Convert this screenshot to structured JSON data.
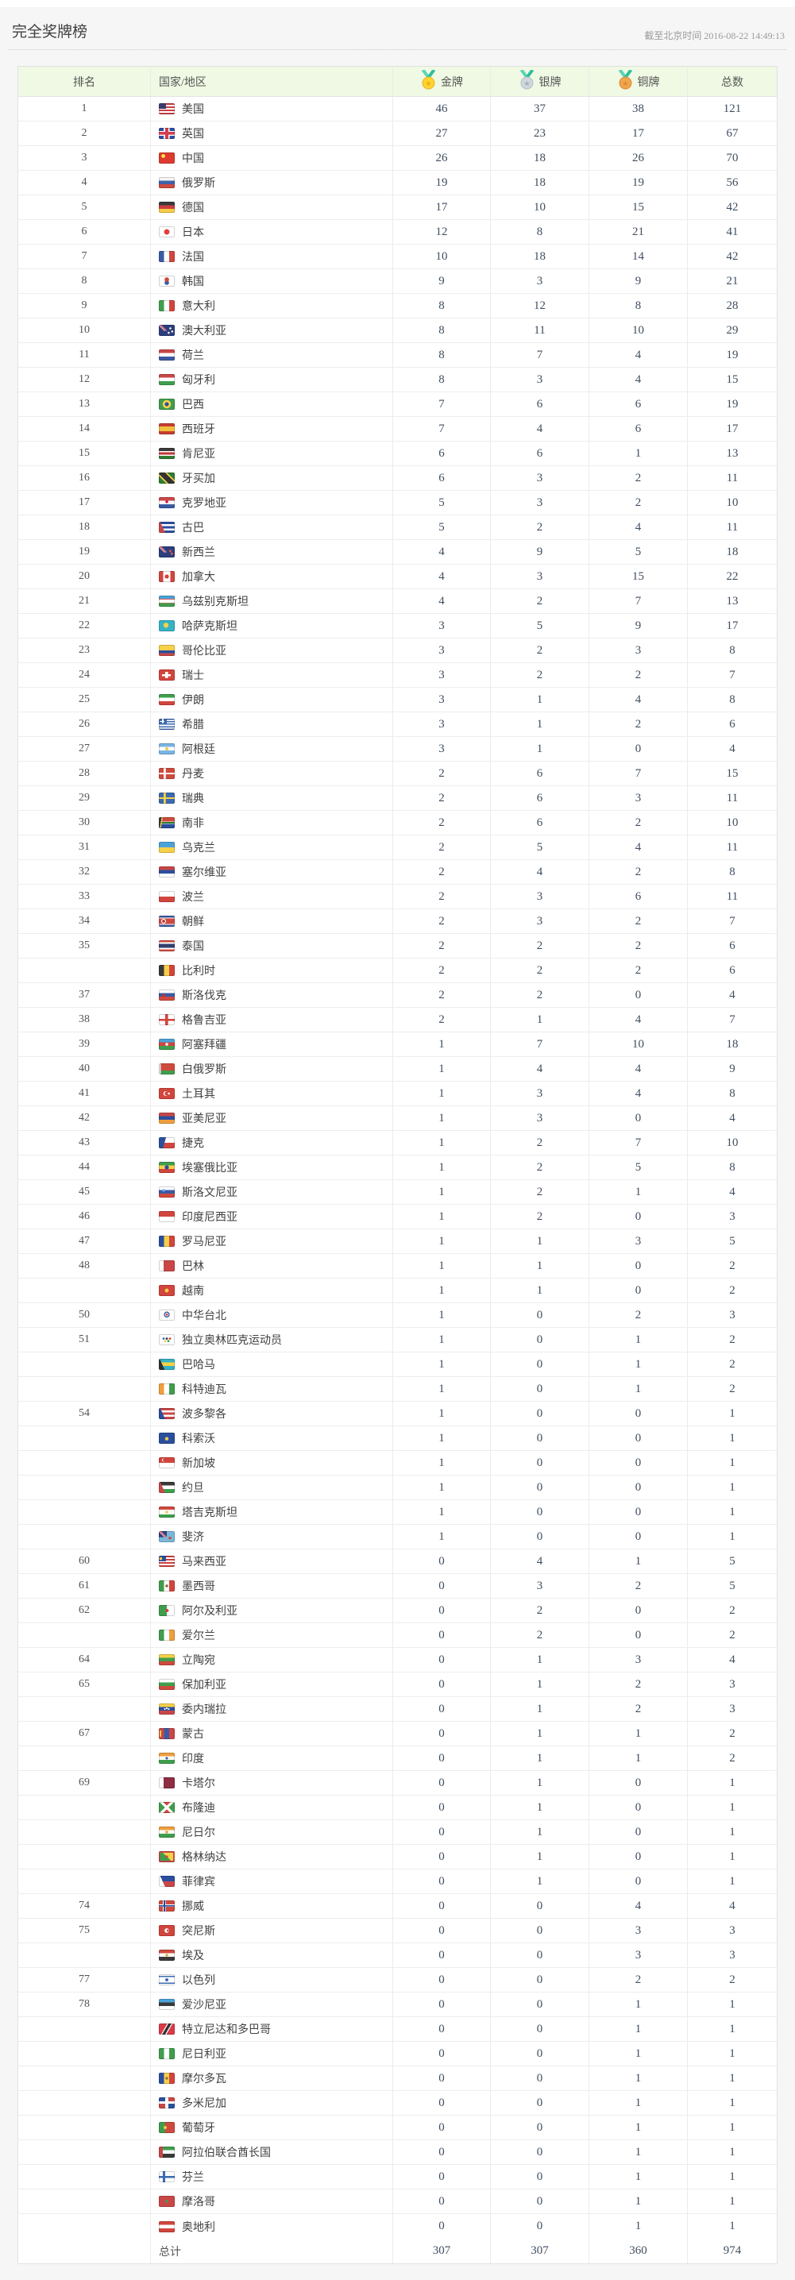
{
  "page": {
    "title": "完全奖牌榜",
    "timestamp": "截至北京时间 2016-08-22 14:49:13"
  },
  "table": {
    "headers": {
      "rank": "排名",
      "country": "国家/地区",
      "gold": "金牌",
      "silver": "银牌",
      "bronze": "铜牌",
      "total": "总数"
    },
    "medal_icons": [
      "gold-medal-icon",
      "silver-medal-icon",
      "bronze-medal-icon"
    ],
    "accent_colors": {
      "header_bg": "#eff9e3",
      "gold": "#ffd52e",
      "silver": "#d0d8dd",
      "bronze": "#f2a54c",
      "ribbon": "#3fc9a7"
    },
    "rows": [
      {
        "rank": "1",
        "country": "美国",
        "flag": "us",
        "gold": 46,
        "silver": 37,
        "bronze": 38,
        "total": 121
      },
      {
        "rank": "2",
        "country": "英国",
        "flag": "gb",
        "gold": 27,
        "silver": 23,
        "bronze": 17,
        "total": 67
      },
      {
        "rank": "3",
        "country": "中国",
        "flag": "cn",
        "gold": 26,
        "silver": 18,
        "bronze": 26,
        "total": 70
      },
      {
        "rank": "4",
        "country": "俄罗斯",
        "flag": "ru",
        "gold": 19,
        "silver": 18,
        "bronze": 19,
        "total": 56
      },
      {
        "rank": "5",
        "country": "德国",
        "flag": "de",
        "gold": 17,
        "silver": 10,
        "bronze": 15,
        "total": 42
      },
      {
        "rank": "6",
        "country": "日本",
        "flag": "jp",
        "gold": 12,
        "silver": 8,
        "bronze": 21,
        "total": 41
      },
      {
        "rank": "7",
        "country": "法国",
        "flag": "fr",
        "gold": 10,
        "silver": 18,
        "bronze": 14,
        "total": 42
      },
      {
        "rank": "8",
        "country": "韩国",
        "flag": "kr",
        "gold": 9,
        "silver": 3,
        "bronze": 9,
        "total": 21
      },
      {
        "rank": "9",
        "country": "意大利",
        "flag": "it",
        "gold": 8,
        "silver": 12,
        "bronze": 8,
        "total": 28
      },
      {
        "rank": "10",
        "country": "澳大利亚",
        "flag": "au",
        "gold": 8,
        "silver": 11,
        "bronze": 10,
        "total": 29
      },
      {
        "rank": "11",
        "country": "荷兰",
        "flag": "nl",
        "gold": 8,
        "silver": 7,
        "bronze": 4,
        "total": 19
      },
      {
        "rank": "12",
        "country": "匈牙利",
        "flag": "hu",
        "gold": 8,
        "silver": 3,
        "bronze": 4,
        "total": 15
      },
      {
        "rank": "13",
        "country": "巴西",
        "flag": "br",
        "gold": 7,
        "silver": 6,
        "bronze": 6,
        "total": 19
      },
      {
        "rank": "14",
        "country": "西班牙",
        "flag": "es",
        "gold": 7,
        "silver": 4,
        "bronze": 6,
        "total": 17
      },
      {
        "rank": "15",
        "country": "肯尼亚",
        "flag": "ke",
        "gold": 6,
        "silver": 6,
        "bronze": 1,
        "total": 13
      },
      {
        "rank": "16",
        "country": "牙买加",
        "flag": "jm",
        "gold": 6,
        "silver": 3,
        "bronze": 2,
        "total": 11
      },
      {
        "rank": "17",
        "country": "克罗地亚",
        "flag": "hr",
        "gold": 5,
        "silver": 3,
        "bronze": 2,
        "total": 10
      },
      {
        "rank": "18",
        "country": "古巴",
        "flag": "cu",
        "gold": 5,
        "silver": 2,
        "bronze": 4,
        "total": 11
      },
      {
        "rank": "19",
        "country": "新西兰",
        "flag": "nz",
        "gold": 4,
        "silver": 9,
        "bronze": 5,
        "total": 18
      },
      {
        "rank": "20",
        "country": "加拿大",
        "flag": "ca",
        "gold": 4,
        "silver": 3,
        "bronze": 15,
        "total": 22
      },
      {
        "rank": "21",
        "country": "乌兹别克斯坦",
        "flag": "uz",
        "gold": 4,
        "silver": 2,
        "bronze": 7,
        "total": 13
      },
      {
        "rank": "22",
        "country": "哈萨克斯坦",
        "flag": "kz",
        "gold": 3,
        "silver": 5,
        "bronze": 9,
        "total": 17
      },
      {
        "rank": "23",
        "country": "哥伦比亚",
        "flag": "co",
        "gold": 3,
        "silver": 2,
        "bronze": 3,
        "total": 8
      },
      {
        "rank": "24",
        "country": "瑞士",
        "flag": "ch",
        "gold": 3,
        "silver": 2,
        "bronze": 2,
        "total": 7
      },
      {
        "rank": "25",
        "country": "伊朗",
        "flag": "ir",
        "gold": 3,
        "silver": 1,
        "bronze": 4,
        "total": 8
      },
      {
        "rank": "26",
        "country": "希腊",
        "flag": "gr",
        "gold": 3,
        "silver": 1,
        "bronze": 2,
        "total": 6
      },
      {
        "rank": "27",
        "country": "阿根廷",
        "flag": "ar",
        "gold": 3,
        "silver": 1,
        "bronze": 0,
        "total": 4
      },
      {
        "rank": "28",
        "country": "丹麦",
        "flag": "dk",
        "gold": 2,
        "silver": 6,
        "bronze": 7,
        "total": 15
      },
      {
        "rank": "29",
        "country": "瑞典",
        "flag": "se",
        "gold": 2,
        "silver": 6,
        "bronze": 3,
        "total": 11
      },
      {
        "rank": "30",
        "country": "南非",
        "flag": "za",
        "gold": 2,
        "silver": 6,
        "bronze": 2,
        "total": 10
      },
      {
        "rank": "31",
        "country": "乌克兰",
        "flag": "ua",
        "gold": 2,
        "silver": 5,
        "bronze": 4,
        "total": 11
      },
      {
        "rank": "32",
        "country": "塞尔维亚",
        "flag": "rs",
        "gold": 2,
        "silver": 4,
        "bronze": 2,
        "total": 8
      },
      {
        "rank": "33",
        "country": "波兰",
        "flag": "pl",
        "gold": 2,
        "silver": 3,
        "bronze": 6,
        "total": 11
      },
      {
        "rank": "34",
        "country": "朝鲜",
        "flag": "kp",
        "gold": 2,
        "silver": 3,
        "bronze": 2,
        "total": 7
      },
      {
        "rank": "35",
        "country": "泰国",
        "flag": "th",
        "gold": 2,
        "silver": 2,
        "bronze": 2,
        "total": 6
      },
      {
        "rank": "",
        "country": "比利时",
        "flag": "be",
        "gold": 2,
        "silver": 2,
        "bronze": 2,
        "total": 6
      },
      {
        "rank": "37",
        "country": "斯洛伐克",
        "flag": "sk",
        "gold": 2,
        "silver": 2,
        "bronze": 0,
        "total": 4
      },
      {
        "rank": "38",
        "country": "格鲁吉亚",
        "flag": "ge",
        "gold": 2,
        "silver": 1,
        "bronze": 4,
        "total": 7
      },
      {
        "rank": "39",
        "country": "阿塞拜疆",
        "flag": "az",
        "gold": 1,
        "silver": 7,
        "bronze": 10,
        "total": 18
      },
      {
        "rank": "40",
        "country": "白俄罗斯",
        "flag": "by",
        "gold": 1,
        "silver": 4,
        "bronze": 4,
        "total": 9
      },
      {
        "rank": "41",
        "country": "土耳其",
        "flag": "tr",
        "gold": 1,
        "silver": 3,
        "bronze": 4,
        "total": 8
      },
      {
        "rank": "42",
        "country": "亚美尼亚",
        "flag": "am",
        "gold": 1,
        "silver": 3,
        "bronze": 0,
        "total": 4
      },
      {
        "rank": "43",
        "country": "捷克",
        "flag": "cz",
        "gold": 1,
        "silver": 2,
        "bronze": 7,
        "total": 10
      },
      {
        "rank": "44",
        "country": "埃塞俄比亚",
        "flag": "et",
        "gold": 1,
        "silver": 2,
        "bronze": 5,
        "total": 8
      },
      {
        "rank": "45",
        "country": "斯洛文尼亚",
        "flag": "si",
        "gold": 1,
        "silver": 2,
        "bronze": 1,
        "total": 4
      },
      {
        "rank": "46",
        "country": "印度尼西亚",
        "flag": "id",
        "gold": 1,
        "silver": 2,
        "bronze": 0,
        "total": 3
      },
      {
        "rank": "47",
        "country": "罗马尼亚",
        "flag": "ro",
        "gold": 1,
        "silver": 1,
        "bronze": 3,
        "total": 5
      },
      {
        "rank": "48",
        "country": "巴林",
        "flag": "bh",
        "gold": 1,
        "silver": 1,
        "bronze": 0,
        "total": 2
      },
      {
        "rank": "",
        "country": "越南",
        "flag": "vn",
        "gold": 1,
        "silver": 1,
        "bronze": 0,
        "total": 2
      },
      {
        "rank": "50",
        "country": "中华台北",
        "flag": "tw",
        "gold": 1,
        "silver": 0,
        "bronze": 2,
        "total": 3
      },
      {
        "rank": "51",
        "country": "独立奥林匹克运动员",
        "flag": "oly",
        "gold": 1,
        "silver": 0,
        "bronze": 1,
        "total": 2
      },
      {
        "rank": "",
        "country": "巴哈马",
        "flag": "bs",
        "gold": 1,
        "silver": 0,
        "bronze": 1,
        "total": 2
      },
      {
        "rank": "",
        "country": "科特迪瓦",
        "flag": "ci",
        "gold": 1,
        "silver": 0,
        "bronze": 1,
        "total": 2
      },
      {
        "rank": "54",
        "country": "波多黎各",
        "flag": "pr",
        "gold": 1,
        "silver": 0,
        "bronze": 0,
        "total": 1
      },
      {
        "rank": "",
        "country": "科索沃",
        "flag": "xk",
        "gold": 1,
        "silver": 0,
        "bronze": 0,
        "total": 1
      },
      {
        "rank": "",
        "country": "新加坡",
        "flag": "sg",
        "gold": 1,
        "silver": 0,
        "bronze": 0,
        "total": 1
      },
      {
        "rank": "",
        "country": "约旦",
        "flag": "jo",
        "gold": 1,
        "silver": 0,
        "bronze": 0,
        "total": 1
      },
      {
        "rank": "",
        "country": "塔吉克斯坦",
        "flag": "tj",
        "gold": 1,
        "silver": 0,
        "bronze": 0,
        "total": 1
      },
      {
        "rank": "",
        "country": "斐济",
        "flag": "fj",
        "gold": 1,
        "silver": 0,
        "bronze": 0,
        "total": 1
      },
      {
        "rank": "60",
        "country": "马来西亚",
        "flag": "my",
        "gold": 0,
        "silver": 4,
        "bronze": 1,
        "total": 5
      },
      {
        "rank": "61",
        "country": "墨西哥",
        "flag": "mx",
        "gold": 0,
        "silver": 3,
        "bronze": 2,
        "total": 5
      },
      {
        "rank": "62",
        "country": "阿尔及利亚",
        "flag": "dz",
        "gold": 0,
        "silver": 2,
        "bronze": 0,
        "total": 2
      },
      {
        "rank": "",
        "country": "爱尔兰",
        "flag": "ie",
        "gold": 0,
        "silver": 2,
        "bronze": 0,
        "total": 2
      },
      {
        "rank": "64",
        "country": "立陶宛",
        "flag": "lt",
        "gold": 0,
        "silver": 1,
        "bronze": 3,
        "total": 4
      },
      {
        "rank": "65",
        "country": "保加利亚",
        "flag": "bg",
        "gold": 0,
        "silver": 1,
        "bronze": 2,
        "total": 3
      },
      {
        "rank": "",
        "country": "委内瑞拉",
        "flag": "ve",
        "gold": 0,
        "silver": 1,
        "bronze": 2,
        "total": 3
      },
      {
        "rank": "67",
        "country": "蒙古",
        "flag": "mn",
        "gold": 0,
        "silver": 1,
        "bronze": 1,
        "total": 2
      },
      {
        "rank": "",
        "country": "印度",
        "flag": "in",
        "gold": 0,
        "silver": 1,
        "bronze": 1,
        "total": 2
      },
      {
        "rank": "69",
        "country": "卡塔尔",
        "flag": "qa",
        "gold": 0,
        "silver": 1,
        "bronze": 0,
        "total": 1
      },
      {
        "rank": "",
        "country": "布隆迪",
        "flag": "bi",
        "gold": 0,
        "silver": 1,
        "bronze": 0,
        "total": 1
      },
      {
        "rank": "",
        "country": "尼日尔",
        "flag": "ne",
        "gold": 0,
        "silver": 1,
        "bronze": 0,
        "total": 1
      },
      {
        "rank": "",
        "country": "格林纳达",
        "flag": "gd",
        "gold": 0,
        "silver": 1,
        "bronze": 0,
        "total": 1
      },
      {
        "rank": "",
        "country": "菲律宾",
        "flag": "ph",
        "gold": 0,
        "silver": 1,
        "bronze": 0,
        "total": 1
      },
      {
        "rank": "74",
        "country": "挪威",
        "flag": "no",
        "gold": 0,
        "silver": 0,
        "bronze": 4,
        "total": 4
      },
      {
        "rank": "75",
        "country": "突尼斯",
        "flag": "tn",
        "gold": 0,
        "silver": 0,
        "bronze": 3,
        "total": 3
      },
      {
        "rank": "",
        "country": "埃及",
        "flag": "eg",
        "gold": 0,
        "silver": 0,
        "bronze": 3,
        "total": 3
      },
      {
        "rank": "77",
        "country": "以色列",
        "flag": "il",
        "gold": 0,
        "silver": 0,
        "bronze": 2,
        "total": 2
      },
      {
        "rank": "78",
        "country": "爱沙尼亚",
        "flag": "ee",
        "gold": 0,
        "silver": 0,
        "bronze": 1,
        "total": 1
      },
      {
        "rank": "",
        "country": "特立尼达和多巴哥",
        "flag": "tt",
        "gold": 0,
        "silver": 0,
        "bronze": 1,
        "total": 1
      },
      {
        "rank": "",
        "country": "尼日利亚",
        "flag": "ng",
        "gold": 0,
        "silver": 0,
        "bronze": 1,
        "total": 1
      },
      {
        "rank": "",
        "country": "摩尔多瓦",
        "flag": "md",
        "gold": 0,
        "silver": 0,
        "bronze": 1,
        "total": 1
      },
      {
        "rank": "",
        "country": "多米尼加",
        "flag": "do",
        "gold": 0,
        "silver": 0,
        "bronze": 1,
        "total": 1
      },
      {
        "rank": "",
        "country": "葡萄牙",
        "flag": "pt",
        "gold": 0,
        "silver": 0,
        "bronze": 1,
        "total": 1
      },
      {
        "rank": "",
        "country": "阿拉伯联合酋长国",
        "flag": "ae",
        "gold": 0,
        "silver": 0,
        "bronze": 1,
        "total": 1
      },
      {
        "rank": "",
        "country": "芬兰",
        "flag": "fi",
        "gold": 0,
        "silver": 0,
        "bronze": 1,
        "total": 1
      },
      {
        "rank": "",
        "country": "摩洛哥",
        "flag": "ma",
        "gold": 0,
        "silver": 0,
        "bronze": 1,
        "total": 1
      },
      {
        "rank": "",
        "country": "奥地利",
        "flag": "at",
        "gold": 0,
        "silver": 0,
        "bronze": 1,
        "total": 1
      }
    ],
    "footer": {
      "label": "总计",
      "gold": 307,
      "silver": 307,
      "bronze": 360,
      "total": 974
    }
  }
}
